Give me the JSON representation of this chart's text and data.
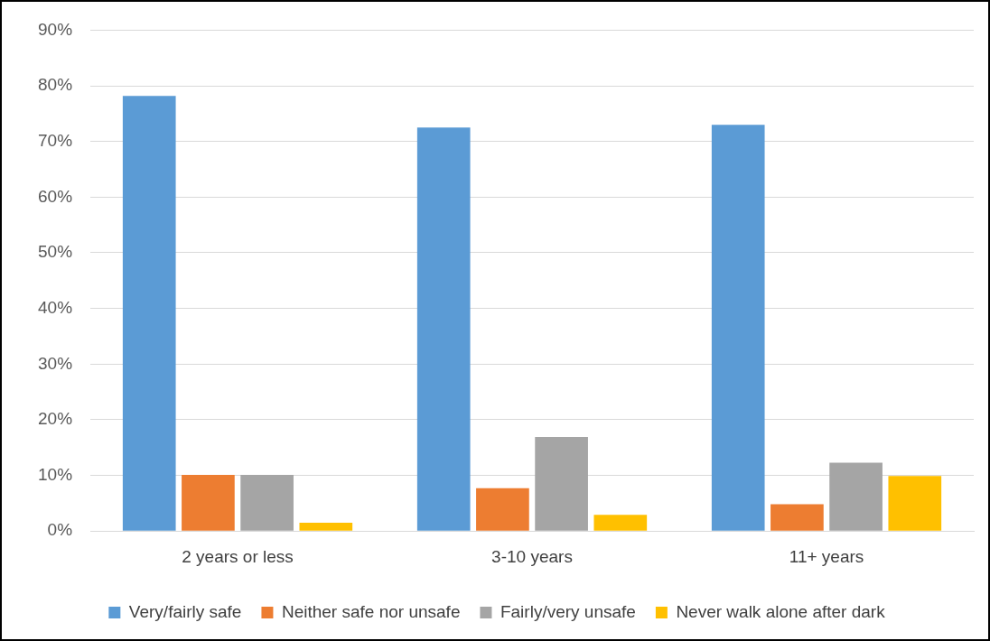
{
  "chart_data": {
    "type": "bar",
    "categories": [
      "2 years or less",
      "3-10 years",
      "11+ years"
    ],
    "series": [
      {
        "name": "Very/fairly safe",
        "color": "#5b9bd5",
        "values": [
          78.2,
          72.5,
          73.0
        ]
      },
      {
        "name": "Neither safe nor unsafe",
        "color": "#ed7d31",
        "values": [
          10.1,
          7.7,
          4.8
        ]
      },
      {
        "name": "Fairly/very unsafe",
        "color": "#a5a5a5",
        "values": [
          10.1,
          16.9,
          12.3
        ]
      },
      {
        "name": "Never walk alone after dark",
        "color": "#ffc000",
        "values": [
          1.5,
          2.9,
          9.9
        ]
      }
    ],
    "ylim": [
      0,
      90
    ],
    "yticks": [
      {
        "value": 0,
        "label": "0%"
      },
      {
        "value": 10,
        "label": "10%"
      },
      {
        "value": 20,
        "label": "20%"
      },
      {
        "value": 30,
        "label": "30%"
      },
      {
        "value": 40,
        "label": "40%"
      },
      {
        "value": 50,
        "label": "50%"
      },
      {
        "value": 60,
        "label": "60%"
      },
      {
        "value": 70,
        "label": "70%"
      },
      {
        "value": 80,
        "label": "80%"
      },
      {
        "value": 90,
        "label": "90%"
      }
    ],
    "grid": "y",
    "legend": "bottom"
  }
}
